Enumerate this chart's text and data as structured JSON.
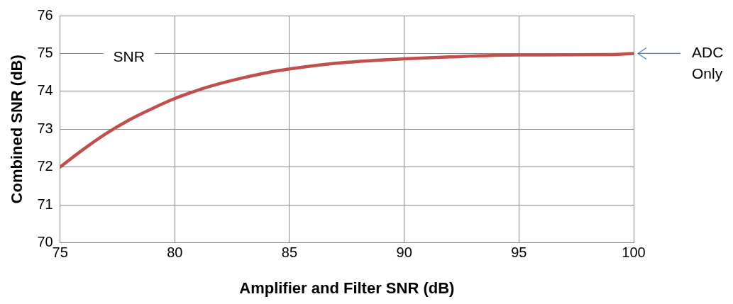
{
  "chart_data": {
    "type": "line",
    "xlabel": "Amplifier and Filter SNR (dB)",
    "ylabel": "Combined SNR (dB)",
    "x": [
      75,
      76,
      77,
      78,
      79,
      80,
      81,
      82,
      83,
      84,
      85,
      86,
      87,
      88,
      90,
      92,
      95,
      99,
      100
    ],
    "series": [
      {
        "color": "#c0504d",
        "values": [
          72.0,
          72.46,
          72.88,
          73.24,
          73.54,
          73.81,
          74.03,
          74.21,
          74.36,
          74.49,
          74.59,
          74.67,
          74.74,
          74.79,
          74.86,
          74.91,
          74.96,
          74.97,
          75.0
        ]
      }
    ],
    "xlim": [
      75,
      100
    ],
    "xticks": [
      75,
      80,
      85,
      90,
      95,
      100
    ],
    "ylim": [
      70,
      76
    ],
    "yticks": [
      70,
      71,
      72,
      73,
      74,
      75,
      76
    ],
    "grid": true,
    "legend": false,
    "marker": "none",
    "line_style": "solid",
    "annotations": [
      "SNR",
      {
        "text": "ADC Only",
        "x": 100,
        "y": 75
      }
    ]
  }
}
